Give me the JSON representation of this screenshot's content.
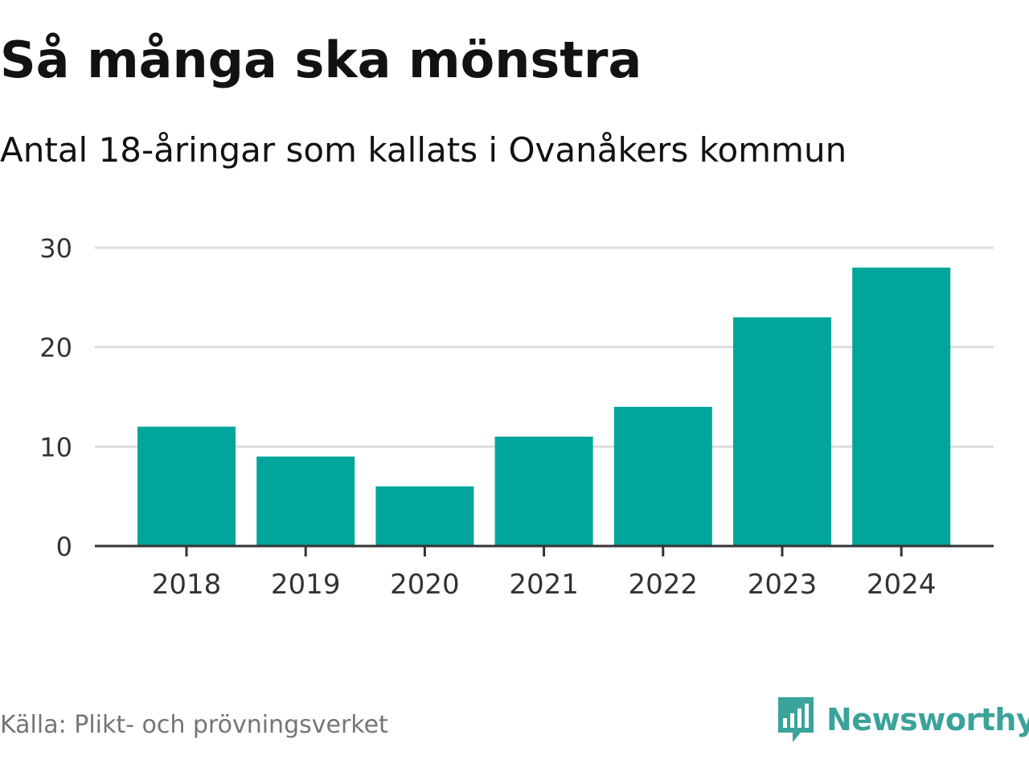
{
  "header": {
    "title": "Så många ska mönstra",
    "subtitle": "Antal 18-åringar som kallats i Ovanåkers kommun"
  },
  "footer": {
    "source": "Källa: Plikt- och prövningsverket",
    "brand": "Newsworthy"
  },
  "colors": {
    "bar": "#00a59b",
    "grid": "#dddddd",
    "axis": "#333333",
    "tick_text": "#333333",
    "brand": "#3aa39a"
  },
  "icons": {
    "brand_logo": "bar-chart-speech-bubble-icon"
  },
  "chart_data": {
    "type": "bar",
    "title": "Så många ska mönstra",
    "subtitle": "Antal 18-åringar som kallats i Ovanåkers kommun",
    "xlabel": "",
    "ylabel": "",
    "categories": [
      "2018",
      "2019",
      "2020",
      "2021",
      "2022",
      "2023",
      "2024"
    ],
    "values": [
      12,
      9,
      6,
      11,
      14,
      23,
      28
    ],
    "ylim": [
      0,
      30
    ],
    "yticks": [
      0,
      10,
      20,
      30
    ],
    "ytick_labels": [
      "0",
      "10",
      "20",
      "30"
    ],
    "grid": true,
    "legend": "none"
  }
}
